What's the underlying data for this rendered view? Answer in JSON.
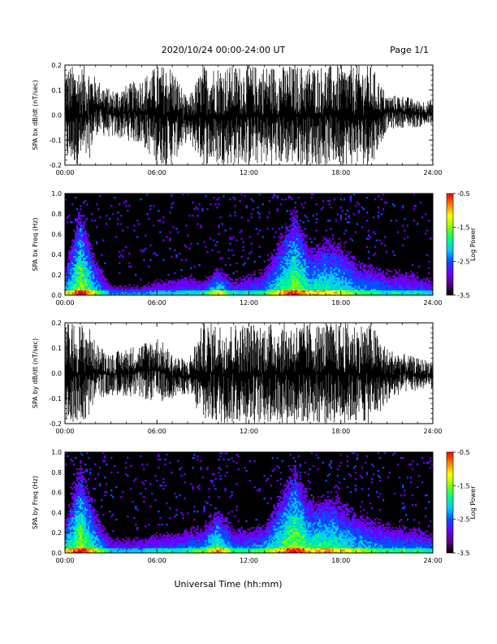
{
  "header": {
    "title": "2020/10/24  00:00-24:00 UT",
    "page": "Page 1/1"
  },
  "x_axis": {
    "label": "Universal Time (hh:mm)",
    "ticks": [
      "00:00",
      "06:00",
      "12:00",
      "18:00",
      "24:00"
    ],
    "range_hours": [
      0,
      24
    ]
  },
  "colors": {
    "background": "#ffffff",
    "waveform": "#000000",
    "spectrogram_background": "#000000",
    "colormap": [
      "#000000",
      "#5a0080",
      "#6a00ff",
      "#0050ff",
      "#00c8ff",
      "#00ff80",
      "#80ff00",
      "#ffff00",
      "#ff8000",
      "#ff0000"
    ]
  },
  "chart_data": [
    {
      "type": "line",
      "ylabel": "SPA bx dB/dt (nT/sec)",
      "ylim": [
        -0.2,
        0.2
      ],
      "yticks": [
        "-0.2",
        "-0.1",
        "0.0",
        "0.1",
        "0.2"
      ],
      "x": [
        0,
        1,
        1.5,
        2,
        3,
        4,
        5,
        6,
        7,
        8,
        9,
        10,
        11,
        12,
        13,
        14,
        15,
        16,
        17,
        18,
        19,
        20,
        21,
        22,
        23,
        24
      ],
      "envelope_upper": [
        0.2,
        0.2,
        0.2,
        0.15,
        0.1,
        0.12,
        0.15,
        0.2,
        0.2,
        0.06,
        0.2,
        0.2,
        0.2,
        0.2,
        0.2,
        0.2,
        0.2,
        0.2,
        0.2,
        0.2,
        0.2,
        0.2,
        0.08,
        0.08,
        0.06,
        0.06
      ],
      "envelope_lower": [
        -0.2,
        -0.2,
        -0.2,
        -0.08,
        -0.09,
        -0.1,
        -0.12,
        -0.2,
        -0.2,
        -0.1,
        -0.2,
        -0.2,
        -0.2,
        -0.2,
        -0.2,
        -0.2,
        -0.2,
        -0.2,
        -0.2,
        -0.2,
        -0.2,
        -0.2,
        -0.06,
        -0.05,
        -0.05,
        -0.04
      ]
    },
    {
      "type": "heatmap",
      "ylabel": "SPA bx Freq (Hz)",
      "ylim": [
        0,
        1
      ],
      "yticks": [
        "0.0",
        "0.2",
        "0.4",
        "0.6",
        "0.8",
        "1.0"
      ],
      "colorbar": {
        "label": "Log Power",
        "range": [
          -3.5,
          -0.5
        ],
        "ticks": [
          "-0.5",
          "-1.5",
          "-2.5",
          "-3.5"
        ]
      },
      "x": [
        0,
        1,
        2,
        3,
        4,
        5,
        6,
        7,
        8,
        9,
        10,
        11,
        12,
        13,
        14,
        15,
        16,
        17,
        18,
        19,
        20,
        21,
        22,
        23,
        24
      ],
      "activity_top_freq": [
        0.3,
        0.9,
        0.4,
        0.15,
        0.15,
        0.15,
        0.2,
        0.2,
        0.25,
        0.2,
        0.3,
        0.2,
        0.25,
        0.3,
        0.6,
        0.9,
        0.5,
        0.6,
        0.55,
        0.4,
        0.35,
        0.3,
        0.3,
        0.25,
        0.2
      ],
      "activity_level": [
        0.6,
        0.9,
        0.6,
        0.35,
        0.35,
        0.35,
        0.4,
        0.4,
        0.45,
        0.45,
        0.7,
        0.45,
        0.45,
        0.5,
        0.7,
        0.85,
        0.7,
        0.7,
        0.65,
        0.55,
        0.5,
        0.45,
        0.45,
        0.45,
        0.4
      ]
    },
    {
      "type": "line",
      "ylabel": "SPA by dB/dt (nT/sec)",
      "ylim": [
        -0.2,
        0.2
      ],
      "yticks": [
        "-0.2",
        "-0.1",
        "0.0",
        "0.1",
        "0.2"
      ],
      "x": [
        0,
        1,
        1.5,
        2,
        3,
        4,
        5,
        6,
        7,
        8,
        9,
        10,
        11,
        12,
        13,
        14,
        15,
        16,
        17,
        18,
        19,
        20,
        21,
        22,
        23,
        24
      ],
      "envelope_upper": [
        0.2,
        0.2,
        0.2,
        0.12,
        0.08,
        0.1,
        0.12,
        0.15,
        0.08,
        0.05,
        0.2,
        0.2,
        0.2,
        0.2,
        0.2,
        0.2,
        0.2,
        0.2,
        0.2,
        0.2,
        0.2,
        0.2,
        0.1,
        0.08,
        0.06,
        0.05
      ],
      "envelope_lower": [
        -0.2,
        -0.2,
        -0.2,
        -0.1,
        -0.09,
        -0.09,
        -0.1,
        -0.12,
        -0.1,
        -0.08,
        -0.2,
        -0.2,
        -0.2,
        -0.2,
        -0.2,
        -0.2,
        -0.2,
        -0.2,
        -0.2,
        -0.2,
        -0.2,
        -0.2,
        -0.12,
        -0.08,
        -0.07,
        -0.06
      ]
    },
    {
      "type": "heatmap",
      "ylabel": "SPA by Freq (Hz)",
      "ylim": [
        0,
        1
      ],
      "yticks": [
        "0.0",
        "0.2",
        "0.4",
        "0.6",
        "0.8",
        "1.0"
      ],
      "colorbar": {
        "label": "Log Power",
        "range": [
          -3.5,
          -0.5
        ],
        "ticks": [
          "-0.5",
          "-1.5",
          "-2.5",
          "-3.5"
        ]
      },
      "x": [
        0,
        1,
        2,
        3,
        4,
        5,
        6,
        7,
        8,
        9,
        10,
        11,
        12,
        13,
        14,
        15,
        16,
        17,
        18,
        19,
        20,
        21,
        22,
        23,
        24
      ],
      "activity_top_freq": [
        0.35,
        0.9,
        0.45,
        0.2,
        0.2,
        0.2,
        0.25,
        0.25,
        0.3,
        0.3,
        0.45,
        0.3,
        0.3,
        0.35,
        0.6,
        0.9,
        0.55,
        0.6,
        0.55,
        0.45,
        0.4,
        0.35,
        0.3,
        0.3,
        0.25
      ],
      "activity_level": [
        0.65,
        0.9,
        0.65,
        0.4,
        0.4,
        0.4,
        0.45,
        0.45,
        0.5,
        0.55,
        0.8,
        0.5,
        0.5,
        0.55,
        0.75,
        0.9,
        0.75,
        0.75,
        0.7,
        0.6,
        0.55,
        0.5,
        0.5,
        0.5,
        0.45
      ]
    }
  ]
}
